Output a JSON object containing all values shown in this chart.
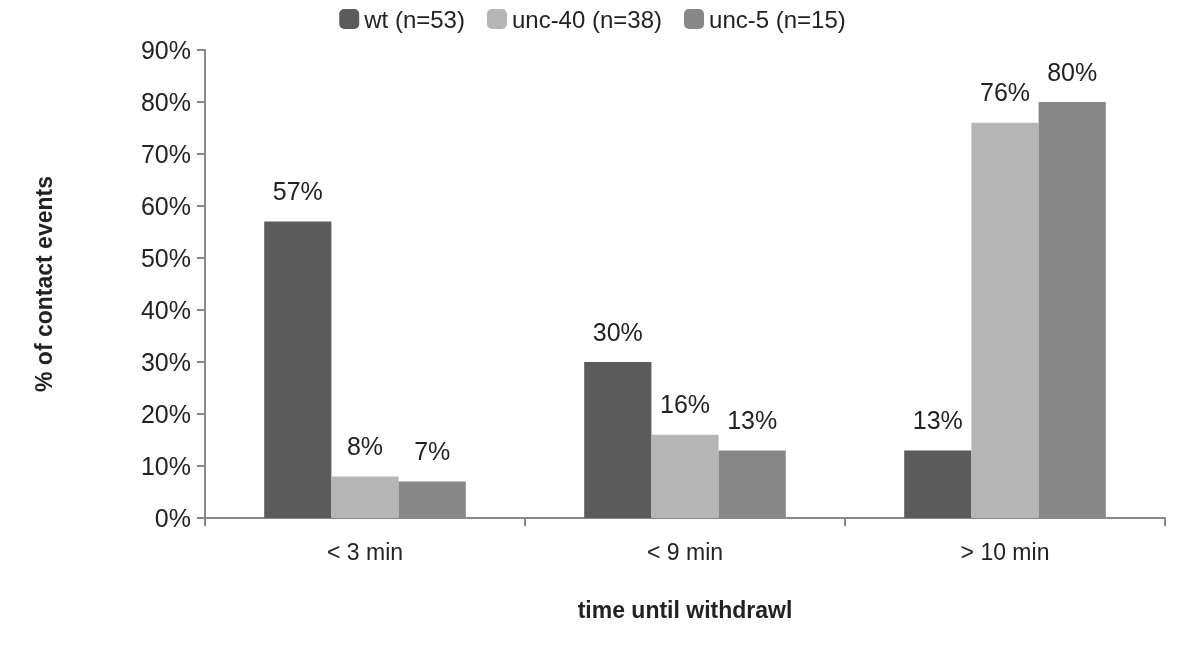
{
  "chart_data": {
    "type": "bar",
    "xlabel": "time until withdrawl",
    "ylabel": "% of contact events",
    "categories": [
      "< 3 min",
      "< 9 min",
      "> 10 min"
    ],
    "series": [
      {
        "name": "wt (n=53)",
        "color": "#5b5b5b",
        "values": [
          57,
          30,
          13
        ],
        "value_labels": [
          "57%",
          "30%",
          "13%"
        ]
      },
      {
        "name": "unc-40 (n=38)",
        "color": "#b5b5b5",
        "values": [
          8,
          16,
          76
        ],
        "value_labels": [
          "8%",
          "16%",
          "76%"
        ]
      },
      {
        "name": "unc-5 (n=15)",
        "color": "#878787",
        "values": [
          7,
          13,
          80
        ],
        "value_labels": [
          "7%",
          "13%",
          "80%"
        ]
      }
    ],
    "ylim": [
      0,
      90
    ],
    "yticks": [
      {
        "value": 0,
        "label": "0%"
      },
      {
        "value": 10,
        "label": "10%"
      },
      {
        "value": 20,
        "label": "20%"
      },
      {
        "value": 30,
        "label": "30%"
      },
      {
        "value": 40,
        "label": "40%"
      },
      {
        "value": 50,
        "label": "50%"
      },
      {
        "value": 60,
        "label": "60%"
      },
      {
        "value": 70,
        "label": "70%"
      },
      {
        "value": 80,
        "label": "80%"
      },
      {
        "value": 90,
        "label": "90%"
      }
    ],
    "grid": false,
    "legend": "top"
  }
}
